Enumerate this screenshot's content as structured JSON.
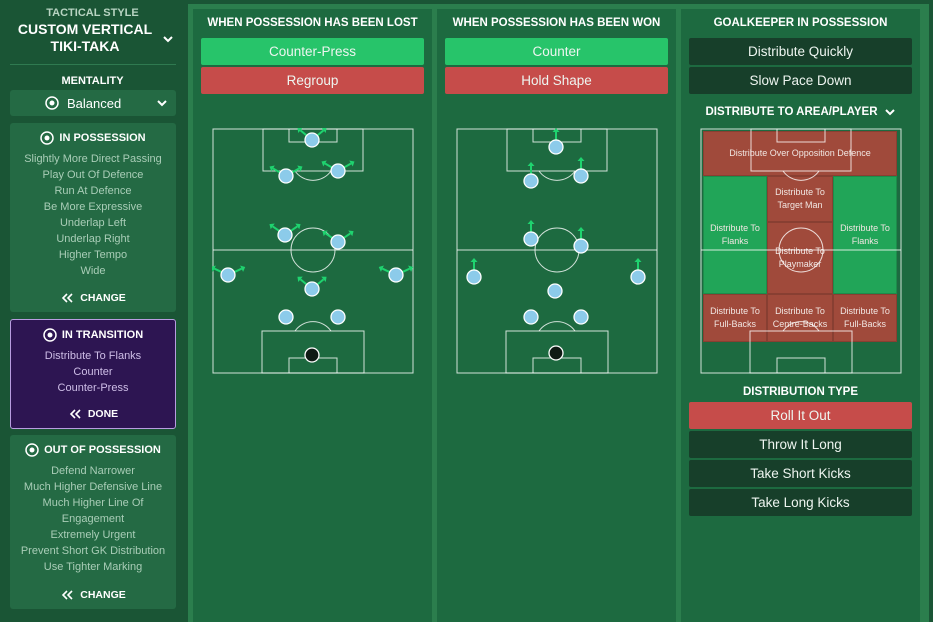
{
  "sidebar": {
    "tactical_style": {
      "label": "TACTICAL STYLE",
      "name": "CUSTOM VERTICAL TIKI-TAKA"
    },
    "mentality": {
      "label": "MENTALITY",
      "value": "Balanced"
    },
    "panels": [
      {
        "title": "IN POSSESSION",
        "items": [
          "Slightly More Direct Passing",
          "Play Out Of Defence",
          "Run At Defence",
          "Be More Expressive",
          "Underlap Left",
          "Underlap Right",
          "Higher Tempo",
          "Wide"
        ],
        "action": "CHANGE"
      },
      {
        "title": "IN TRANSITION",
        "items": [
          "Distribute To Flanks",
          "Counter",
          "Counter-Press"
        ],
        "action": "DONE"
      },
      {
        "title": "OUT OF POSSESSION",
        "items": [
          "Defend Narrower",
          "Much Higher Defensive Line",
          "Much Higher Line Of Engagement",
          "Extremely Urgent",
          "Prevent Short GK Distribution",
          "Use Tighter Marking"
        ],
        "action": "CHANGE"
      }
    ]
  },
  "columns": [
    {
      "title": "WHEN POSSESSION HAS BEEN LOST",
      "options": [
        {
          "label": "Counter-Press",
          "color": "#27c46a"
        },
        {
          "label": "Regroup",
          "color": "#c64c4a"
        }
      ]
    },
    {
      "title": "WHEN POSSESSION HAS BEEN WON",
      "options": [
        {
          "label": "Counter",
          "color": "#27c46a"
        },
        {
          "label": "Hold Shape",
          "color": "#c64c4a"
        }
      ]
    }
  ],
  "goalkeeper": {
    "title": "GOALKEEPER IN POSSESSION",
    "options": [
      {
        "label": "Distribute Quickly",
        "color": "#173f2a"
      },
      {
        "label": "Slow Pace Down",
        "color": "#173f2a"
      }
    ],
    "area_title": "DISTRIBUTE TO AREA/PLAYER",
    "areas": [
      {
        "label": "Distribute Over Opposition Defence",
        "color": "#a04a3b"
      },
      {
        "label": "Distribute To Flanks",
        "color": "#21a558"
      },
      {
        "label": "Distribute To Target Man",
        "color": "#a04a3b"
      },
      {
        "label": "Distribute To Playmaker",
        "color": "#a04a3b"
      },
      {
        "label": "Distribute To Flanks",
        "color": "#21a558"
      },
      {
        "label": "Distribute To Full-Backs",
        "color": "#a04a3b"
      },
      {
        "label": "Distribute To Centre-Backs",
        "color": "#a04a3b"
      },
      {
        "label": "Distribute To Full-Backs",
        "color": "#a04a3b"
      }
    ],
    "type_title": "DISTRIBUTION TYPE",
    "types": [
      {
        "label": "Roll It Out",
        "color": "#c64c4a"
      },
      {
        "label": "Throw It Long",
        "color": "#173f2a"
      },
      {
        "label": "Take Short Kicks",
        "color": "#173f2a"
      },
      {
        "label": "Take Long Kicks",
        "color": "#173f2a"
      }
    ]
  }
}
